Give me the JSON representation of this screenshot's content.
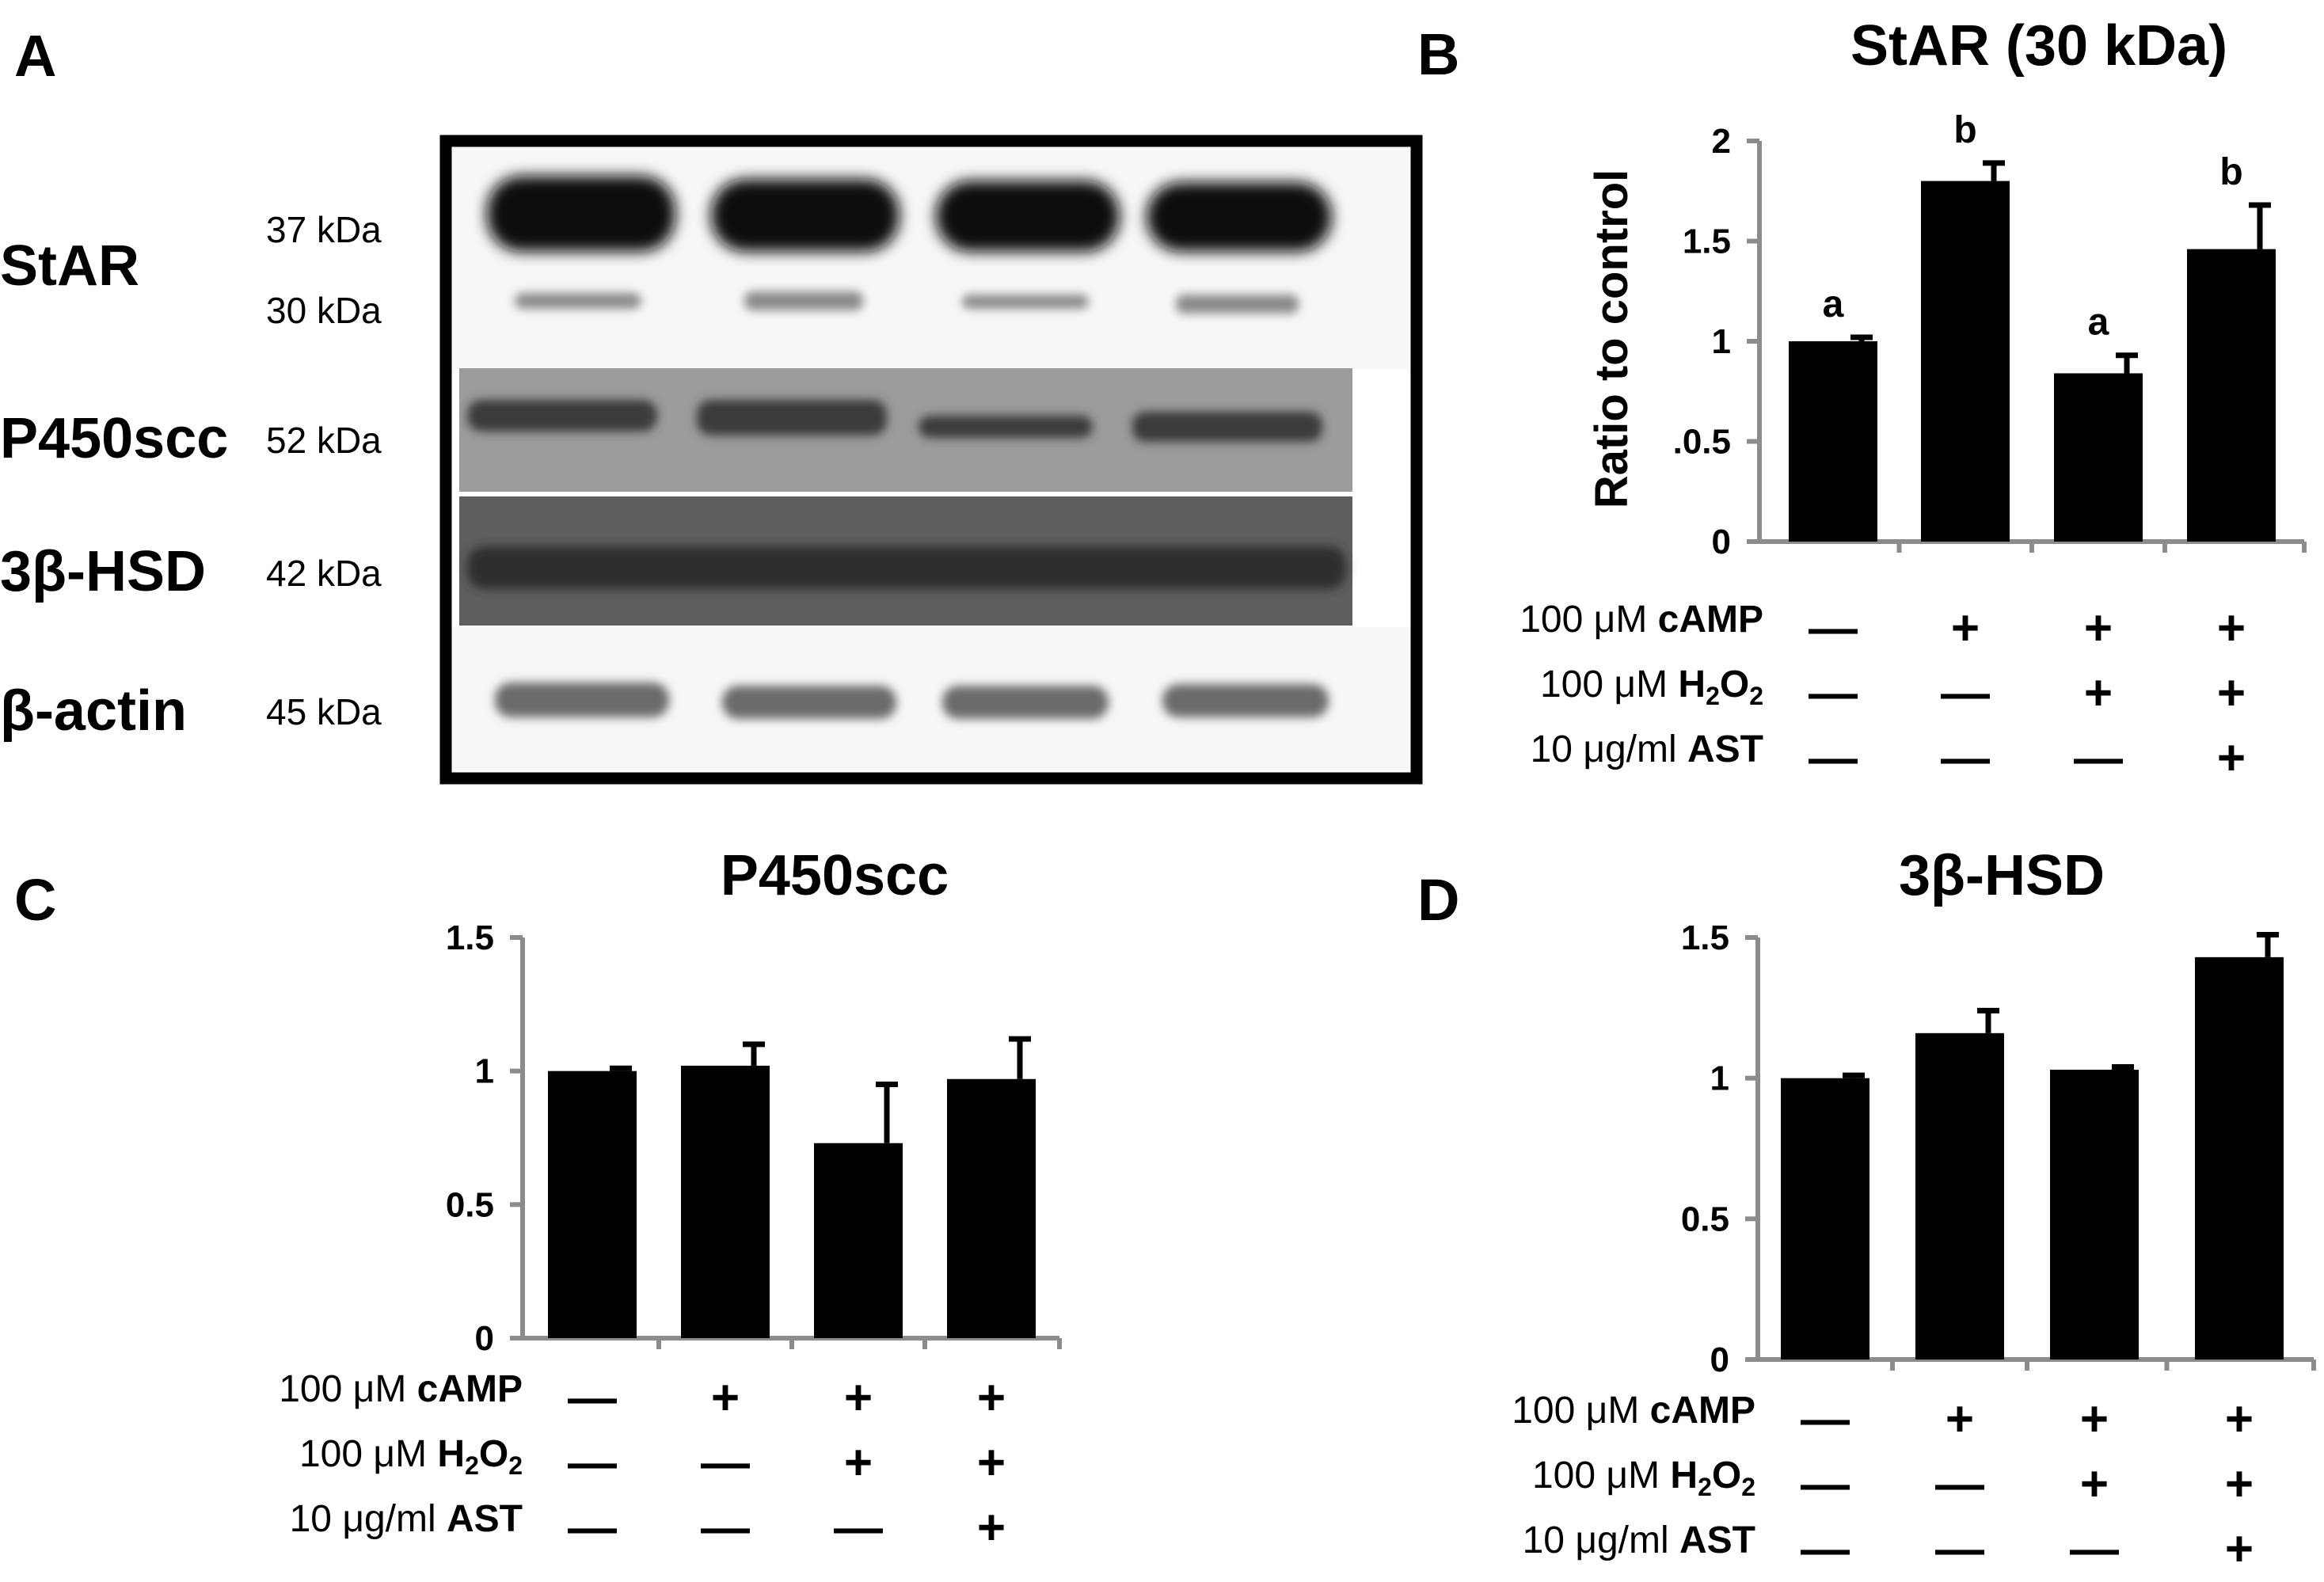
{
  "panels": {
    "A": "A",
    "B": "B",
    "C": "C",
    "D": "D"
  },
  "blot": {
    "bands": [
      {
        "label": "StAR",
        "markers": [
          "37 kDa",
          "30 kDa"
        ]
      },
      {
        "label": "P450scc",
        "markers": [
          "52 kDa"
        ]
      },
      {
        "label": "3β-HSD",
        "markers": [
          "42 kDa"
        ]
      },
      {
        "label": "β-actin",
        "markers": [
          "45 kDa"
        ]
      }
    ]
  },
  "conditions": [
    {
      "dose": "100 μM",
      "name": "cAMP",
      "signs": [
        "—",
        "+",
        "+",
        "+"
      ]
    },
    {
      "dose": "100 μM",
      "name": "H",
      "sub": "2",
      "name2": "O",
      "sub2": "2",
      "signs": [
        "—",
        "—",
        "+",
        "+"
      ]
    },
    {
      "dose": "10  μg/ml",
      "name": "AST",
      "signs": [
        "—",
        "—",
        "—",
        "+"
      ]
    }
  ],
  "colors": {
    "bar": "#000000",
    "axis": "#8c8c8c",
    "frame": "#000000"
  },
  "chart_data": [
    {
      "panel": "B",
      "type": "bar",
      "title": "StAR (30 kDa)",
      "ylabel": "Ratio to control",
      "ylim": [
        0,
        2
      ],
      "yticks": [
        {
          "value": 0,
          "label": "0"
        },
        {
          "value": 0.5,
          "label": ".0.5"
        },
        {
          "value": 1,
          "label": "1"
        },
        {
          "value": 1.5,
          "label": "1.5"
        },
        {
          "value": 2,
          "label": "2"
        }
      ],
      "categories": [
        "control",
        "cAMP",
        "cAMP + H2O2",
        "cAMP + H2O2 + AST"
      ],
      "values": [
        1.0,
        1.8,
        0.84,
        1.46
      ],
      "errors": [
        0.02,
        0.09,
        0.09,
        0.22
      ],
      "significance": [
        "a",
        "b",
        "a",
        "b"
      ]
    },
    {
      "panel": "C",
      "type": "bar",
      "title": "P450scc",
      "ylabel": "",
      "ylim": [
        0,
        1.5
      ],
      "yticks": [
        {
          "value": 0,
          "label": "0"
        },
        {
          "value": 0.5,
          "label": "0.5"
        },
        {
          "value": 1,
          "label": "1"
        },
        {
          "value": 1.5,
          "label": "1.5"
        }
      ],
      "categories": [
        "control",
        "cAMP",
        "cAMP + H2O2",
        "cAMP + H2O2 + AST"
      ],
      "values": [
        1.0,
        1.02,
        0.73,
        0.97
      ],
      "errors": [
        0.01,
        0.08,
        0.22,
        0.15
      ],
      "significance": []
    },
    {
      "panel": "D",
      "type": "bar",
      "title": "3β-HSD",
      "ylabel": "",
      "ylim": [
        0,
        1.5
      ],
      "yticks": [
        {
          "value": 0,
          "label": "0"
        },
        {
          "value": 0.5,
          "label": "0.5"
        },
        {
          "value": 1,
          "label": "1"
        },
        {
          "value": 1.5,
          "label": "1.5"
        }
      ],
      "categories": [
        "control",
        "cAMP",
        "cAMP + H2O2",
        "cAMP + H2O2 + AST"
      ],
      "values": [
        1.0,
        1.16,
        1.03,
        1.43
      ],
      "errors": [
        0.01,
        0.08,
        0.01,
        0.08
      ],
      "significance": []
    }
  ]
}
